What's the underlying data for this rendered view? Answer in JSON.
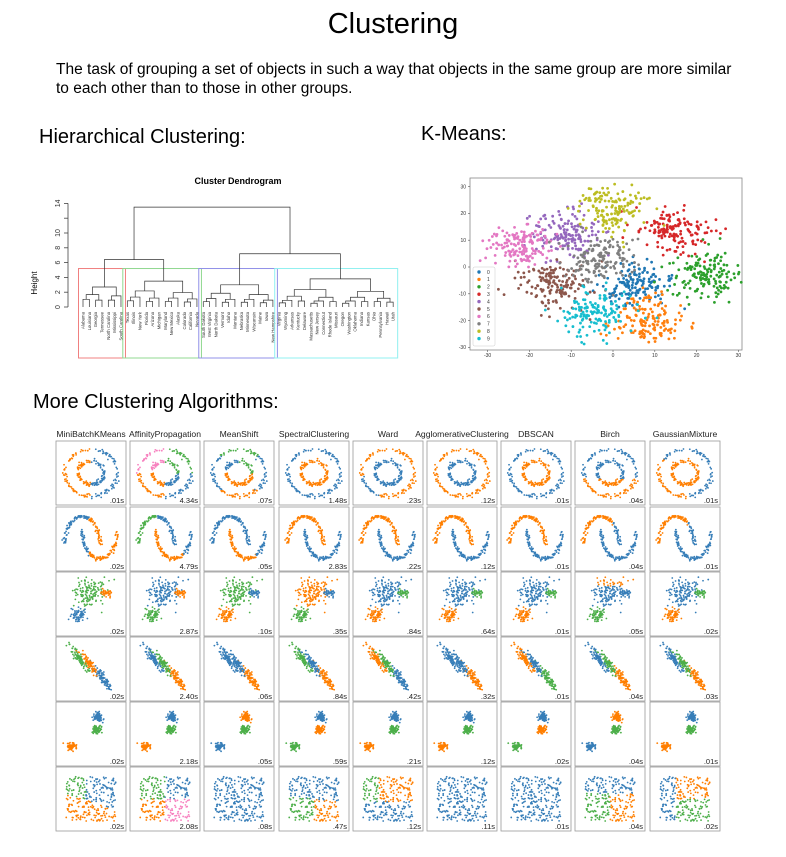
{
  "title": "Clustering",
  "intro": "The task of grouping a set of objects in such a way that objects in the same group are more similar to each other than to those in other groups.",
  "sections": {
    "hierarchical": "Hierarchical Clustering:",
    "kmeans": "K-Means:",
    "more": "More Clustering Algorithms:"
  },
  "colors": {
    "blue": "#377eb8",
    "orange": "#ff7f00",
    "green": "#4daf4a",
    "pink": "#f781bf"
  },
  "dendrogram": {
    "title": "Cluster Dendrogram",
    "ylabel": "Height",
    "ytick_labels": [
      "0",
      "2",
      "4",
      "6",
      "8",
      "10",
      "14"
    ],
    "root_height": 13.5,
    "pair_heights": [
      6.4,
      7.2
    ],
    "clusters": [
      {
        "color": "#f08080",
        "height": 2.7,
        "leaves": [
          "Alabama",
          "Louisiana",
          "Georgia",
          "Tennessee",
          "North Carolina",
          "Mississippi",
          "South Carolina"
        ]
      },
      {
        "color": "#90d890",
        "height": 3.5,
        "leaves": [
          "Texas",
          "Illinois",
          "New York",
          "Florida",
          "Arizona",
          "Michigan",
          "Maryland",
          "New Mexico",
          "Alaska",
          "Colorado",
          "California",
          "Nevada"
        ]
      },
      {
        "color": "#9090e8",
        "height": 3.0,
        "leaves": [
          "South Dakota",
          "West Virginia",
          "North Dakota",
          "Vermont",
          "Idaho",
          "Montana",
          "Nebraska",
          "Minnesota",
          "Wisconsin",
          "Maine",
          "Iowa",
          "New Hampshire"
        ]
      },
      {
        "color": "#90f0f0",
        "height": 3.8,
        "leaves": [
          "Virginia",
          "Wyoming",
          "Arkansas",
          "Kentucky",
          "Delaware",
          "Massachusetts",
          "New Jersey",
          "Connecticut",
          "Rhode Island",
          "Missouri",
          "Oregon",
          "Washington",
          "Oklahoma",
          "Indiana",
          "Kansas",
          "Ohio",
          "Pennsylvania",
          "Hawaii",
          "Utah"
        ]
      }
    ]
  },
  "chart_data": {
    "type": "scatter",
    "xlim": [
      -33,
      31
    ],
    "ylim": [
      -30,
      32
    ],
    "xtick_labels": [
      "-30",
      "-20",
      "-10",
      "0",
      "10",
      "20",
      "30"
    ],
    "ytick_labels": [
      "30",
      "20",
      "10",
      "0",
      "-10",
      "-20",
      "-30"
    ],
    "legend_position": "bottom-left",
    "series": [
      {
        "name": "0",
        "color": "#1f77b4",
        "center": [
          5,
          -7
        ]
      },
      {
        "name": "1",
        "color": "#ff7f0e",
        "center": [
          8,
          -20
        ]
      },
      {
        "name": "2",
        "color": "#2ca02c",
        "center": [
          22,
          -3
        ]
      },
      {
        "name": "3",
        "color": "#d62728",
        "center": [
          15,
          13
        ]
      },
      {
        "name": "4",
        "color": "#9467bd",
        "center": [
          -11,
          12
        ]
      },
      {
        "name": "5",
        "color": "#8c564b",
        "center": [
          -14,
          -6
        ]
      },
      {
        "name": "6",
        "color": "#e377c2",
        "center": [
          -23,
          8
        ]
      },
      {
        "name": "7",
        "color": "#7f7f7f",
        "center": [
          -3,
          3
        ]
      },
      {
        "name": "8",
        "color": "#bcbd22",
        "center": [
          0,
          22
        ]
      },
      {
        "name": "9",
        "color": "#17becf",
        "center": [
          -4,
          -17
        ]
      }
    ]
  },
  "grid": {
    "algorithms": [
      "MiniBatchKMeans",
      "AffinityPropagation",
      "MeanShift",
      "SpectralClustering",
      "Ward",
      "AgglomerativeClustering",
      "DBSCAN",
      "Birch",
      "GaussianMixture"
    ],
    "rows": [
      {
        "dataset": "noisy_circles",
        "times": [
          ".01s",
          "4.34s",
          ".07s",
          "1.48s",
          ".23s",
          ".12s",
          ".01s",
          ".04s",
          ".01s"
        ]
      },
      {
        "dataset": "noisy_moons",
        "times": [
          ".02s",
          "4.79s",
          ".05s",
          "2.83s",
          ".22s",
          ".12s",
          ".01s",
          ".04s",
          ".01s"
        ]
      },
      {
        "dataset": "varied",
        "times": [
          ".02s",
          "2.87s",
          ".10s",
          ".35s",
          ".84s",
          ".64s",
          ".01s",
          ".05s",
          ".02s"
        ]
      },
      {
        "dataset": "aniso",
        "times": [
          ".02s",
          "2.40s",
          ".06s",
          ".84s",
          ".42s",
          ".32s",
          ".01s",
          ".04s",
          ".03s"
        ]
      },
      {
        "dataset": "blobs",
        "times": [
          ".02s",
          "2.18s",
          ".05s",
          ".59s",
          ".21s",
          ".12s",
          ".02s",
          ".04s",
          ".01s"
        ]
      },
      {
        "dataset": "no_structure",
        "times": [
          ".02s",
          "2.08s",
          ".08s",
          ".47s",
          ".12s",
          ".11s",
          ".01s",
          ".04s",
          ".02s"
        ]
      }
    ]
  }
}
